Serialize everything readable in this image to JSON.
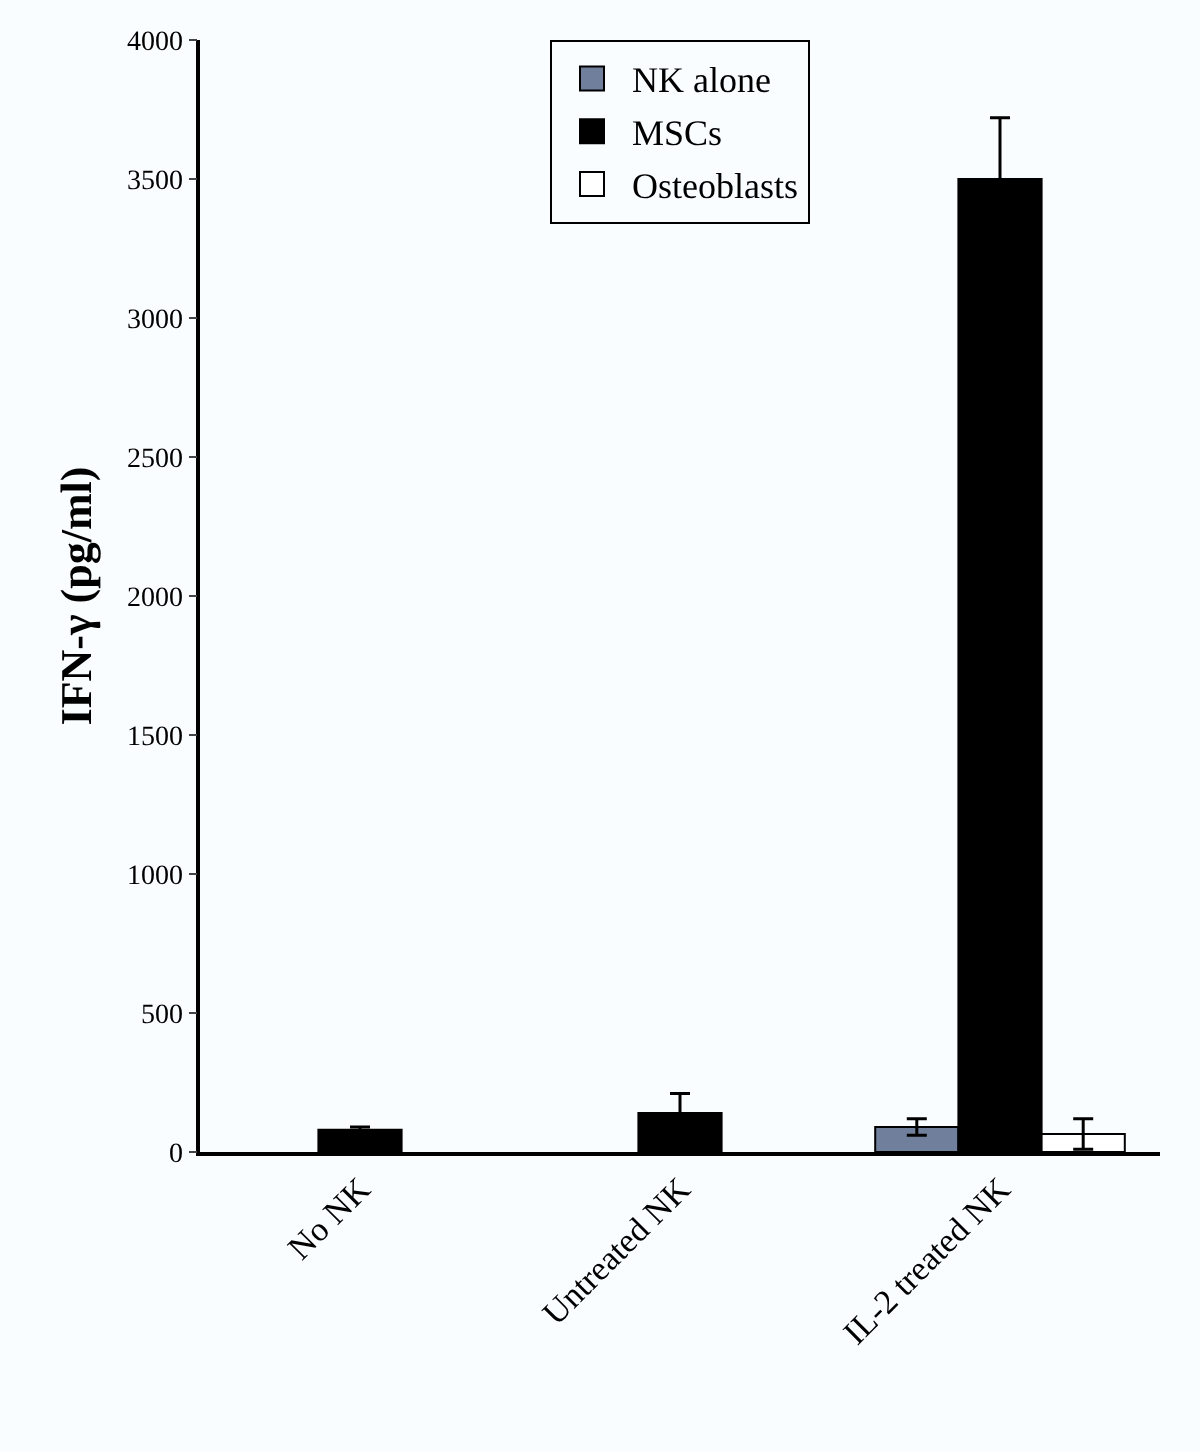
{
  "chart_data": {
    "type": "bar",
    "ylabel": "IFN-γ (pg/ml)",
    "categories": [
      "No NK",
      "Untreated NK",
      "IL-2 treated NK"
    ],
    "series": [
      {
        "name": "NK alone",
        "color": "#6f7f9c",
        "values": [
          null,
          null,
          90
        ],
        "errors": [
          null,
          null,
          30
        ]
      },
      {
        "name": "MSCs",
        "color": "#000000",
        "values": [
          80,
          140,
          3500
        ],
        "errors": [
          10,
          70,
          220
        ]
      },
      {
        "name": "Osteoblasts",
        "color": "#ffffff",
        "values": [
          null,
          null,
          65
        ],
        "errors": [
          null,
          null,
          55
        ]
      }
    ],
    "ylim": [
      0,
      4000
    ],
    "yticks": [
      0,
      500,
      1000,
      1500,
      2000,
      2500,
      3000,
      3500,
      4000
    ],
    "grid": false,
    "legend": "top"
  }
}
